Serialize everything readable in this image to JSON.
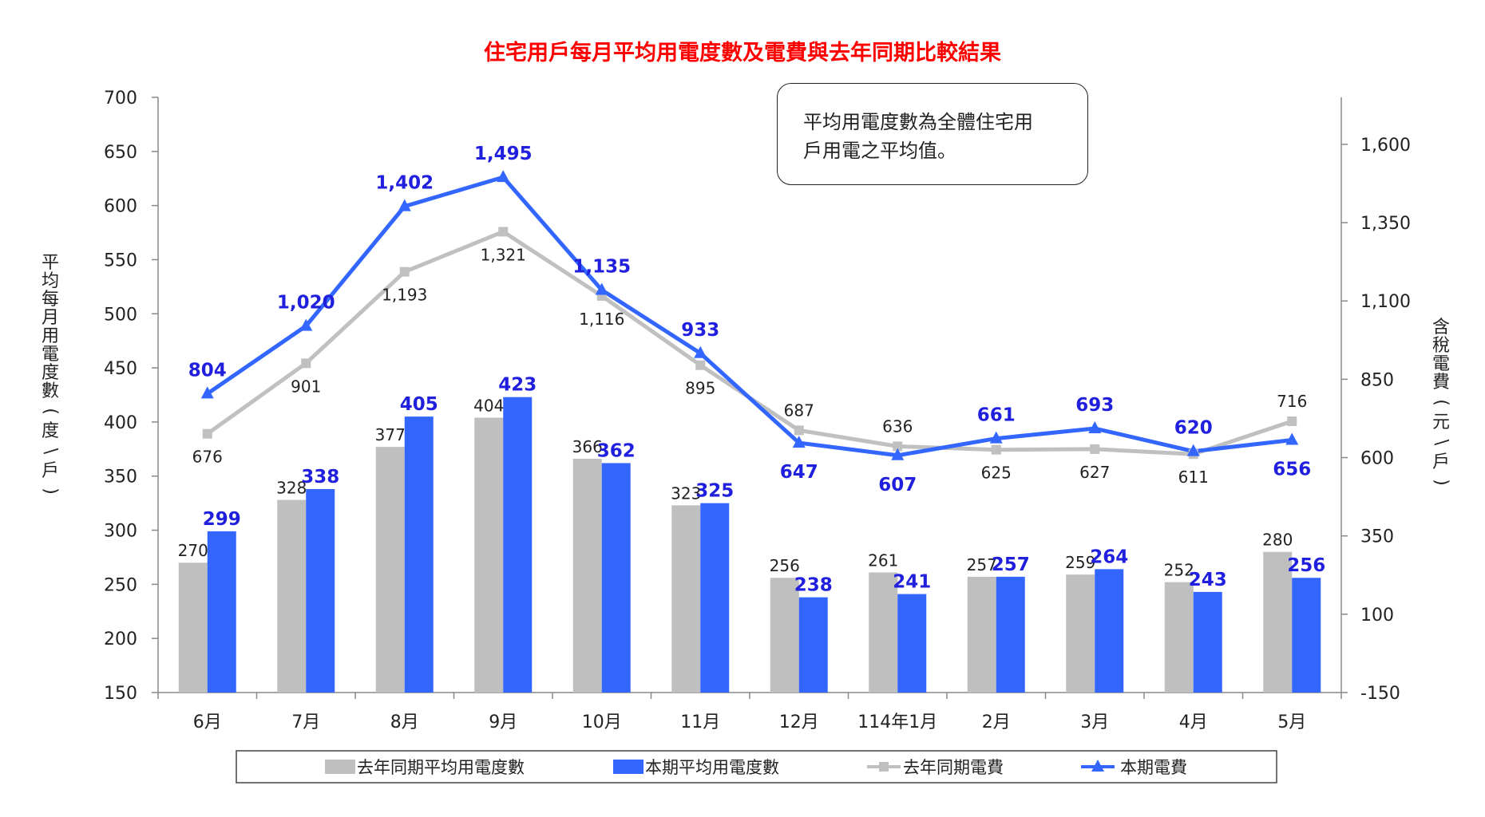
{
  "chart_data": {
    "title": "住宅用戶每月平均用電度數及電費與去年同期比較結果",
    "note": "平均用電度數為全體住宅用戶用電之平均值。",
    "note_lines": [
      "平均用電度數為全體住宅用",
      "戶用電之平均值。"
    ],
    "y_left_label": "平均每月用電度數（度\\戶）",
    "y_left_label_parts": [
      "平",
      "均",
      "每",
      "月",
      "用",
      "電",
      "度",
      "數",
      "(",
      "度",
      "\\",
      "戶",
      ")"
    ],
    "y_right_label": "含稅電費（元\\戶）",
    "y_right_label_parts": [
      "含",
      "稅",
      "電",
      "費",
      "(",
      "元",
      "\\",
      "戶",
      ")"
    ],
    "y_left": {
      "min": 150,
      "max": 700,
      "ticks": [
        "150",
        "200",
        "250",
        "300",
        "350",
        "400",
        "450",
        "500",
        "550",
        "600",
        "650",
        "700"
      ]
    },
    "y_right": {
      "min": -150,
      "max": 1750,
      "ticks": [
        "-150",
        "100",
        "350",
        "600",
        "850",
        "1,100",
        "1,350",
        "1,600"
      ]
    },
    "categories": [
      "6月",
      "7月",
      "8月",
      "9月",
      "10月",
      "11月",
      "12月",
      "114年1月",
      "2月",
      "3月",
      "4月",
      "5月"
    ],
    "series": [
      {
        "name": "去年同期平均用電度數",
        "type": "bar",
        "axis": "left",
        "color": "#bfbfbf",
        "values": [
          270,
          328,
          377,
          404,
          366,
          323,
          256,
          261,
          257,
          259,
          252,
          280
        ],
        "labels": [
          "270",
          "328",
          "377",
          "404",
          "366",
          "323",
          "256",
          "261",
          "257",
          "259",
          "252",
          "280"
        ]
      },
      {
        "name": "本期平均用電度數",
        "type": "bar",
        "axis": "left",
        "color": "#3366ff",
        "values": [
          299,
          338,
          405,
          423,
          362,
          325,
          238,
          241,
          257,
          264,
          243,
          256
        ],
        "labels": [
          "299",
          "338",
          "405",
          "423",
          "362",
          "325",
          "238",
          "241",
          "257",
          "264",
          "243",
          "256"
        ]
      },
      {
        "name": "去年同期電費",
        "type": "line",
        "axis": "right",
        "color": "#c0c0c0",
        "marker": "square",
        "values": [
          676,
          901,
          1193,
          1321,
          1116,
          895,
          687,
          636,
          625,
          627,
          611,
          716
        ],
        "labels": [
          "676",
          "901",
          "1,193",
          "1,321",
          "1,116",
          "895",
          "687",
          "636",
          "625",
          "627",
          "611",
          "716"
        ]
      },
      {
        "name": "本期電費",
        "type": "line",
        "axis": "right",
        "color": "#3366ff",
        "marker": "triangle",
        "values": [
          804,
          1020,
          1402,
          1495,
          1135,
          933,
          647,
          607,
          661,
          693,
          620,
          656
        ],
        "labels": [
          "804",
          "1,020",
          "1,402",
          "1,495",
          "1,135",
          "933",
          "647",
          "607",
          "661",
          "693",
          "620",
          "656"
        ]
      }
    ],
    "legend_position": "bottom",
    "grid": false
  }
}
